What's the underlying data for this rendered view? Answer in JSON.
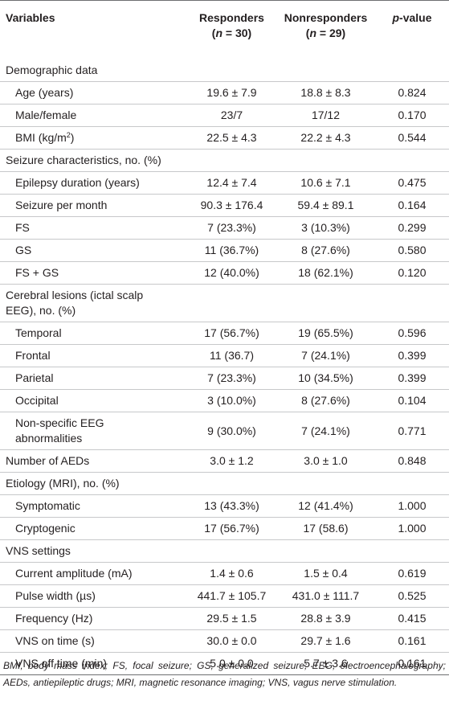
{
  "header": {
    "col1": "Variables",
    "col2_line1": "Responders",
    "col2_n_open": "(",
    "col2_n": "n",
    "col2_n_rest": " = 30)",
    "col3_line1": "Nonresponders",
    "col3_n_open": "(",
    "col3_n": "n",
    "col3_n_rest": " = 29)",
    "col4_p": "p",
    "col4_rest": "-value"
  },
  "rows": [
    {
      "label": "Demographic data",
      "r": "",
      "n": "",
      "p": ""
    },
    {
      "label": "Age (years)",
      "r": "19.6 ± 7.9",
      "n": "18.8 ± 8.3",
      "p": "0.824"
    },
    {
      "label": "Male/female",
      "r": "23/7",
      "n": "17/12",
      "p": "0.170"
    },
    {
      "label": "BMI (kg/m",
      "sup": "2",
      "label_end": ")",
      "r": "22.5 ± 4.3",
      "n": "22.2 ± 4.3",
      "p": "0.544"
    },
    {
      "label": "Seizure characteristics, no. (%)",
      "r": "",
      "n": "",
      "p": ""
    },
    {
      "label": "Epilepsy duration (years)",
      "r": "12.4 ± 7.4",
      "n": "10.6 ± 7.1",
      "p": "0.475"
    },
    {
      "label": "Seizure per month",
      "r": "90.3 ± 176.4",
      "n": "59.4 ± 89.1",
      "p": "0.164"
    },
    {
      "label": "FS",
      "r": "7 (23.3%)",
      "n": "3 (10.3%)",
      "p": "0.299"
    },
    {
      "label": "GS",
      "r": "11 (36.7%)",
      "n": "8 (27.6%)",
      "p": "0.580"
    },
    {
      "label": "FS + GS",
      "r": "12 (40.0%)",
      "n": "18 (62.1%)",
      "p": "0.120"
    },
    {
      "label": "Cerebral lesions (ictal scalp",
      "label2": "EEG), no. (%)",
      "r": "",
      "n": "",
      "p": ""
    },
    {
      "label": "Temporal",
      "r": "17 (56.7%)",
      "n": "19 (65.5%)",
      "p": "0.596"
    },
    {
      "label": "Frontal",
      "r": "11 (36.7)",
      "n": "7 (24.1%)",
      "p": "0.399"
    },
    {
      "label": "Parietal",
      "r": "7 (23.3%)",
      "n": "10 (34.5%)",
      "p": "0.399"
    },
    {
      "label": "Occipital",
      "r": "3 (10.0%)",
      "n": "8 (27.6%)",
      "p": "0.104"
    },
    {
      "label": "Non-specific EEG",
      "label2": "abnormalities",
      "r": "9 (30.0%)",
      "n": "7 (24.1%)",
      "p": "0.771"
    },
    {
      "label": "Number of AEDs",
      "r": "3.0 ± 1.2",
      "n": "3.0 ± 1.0",
      "p": "0.848"
    },
    {
      "label": "Etiology (MRI), no. (%)",
      "r": "",
      "n": "",
      "p": ""
    },
    {
      "label": "Symptomatic",
      "r": "13 (43.3%)",
      "n": "12 (41.4%)",
      "p": "1.000"
    },
    {
      "label": "Cryptogenic",
      "r": "17 (56.7%)",
      "n": "17 (58.6)",
      "p": "1.000"
    },
    {
      "label": "VNS settings",
      "r": "",
      "n": "",
      "p": ""
    },
    {
      "label": "Current amplitude (mA)",
      "r": "1.4 ± 0.6",
      "n": "1.5 ± 0.4",
      "p": "0.619"
    },
    {
      "label": "Pulse width (µs)",
      "r": "441.7 ± 105.7",
      "n": "431.0 ± 111.7",
      "p": "0.525"
    },
    {
      "label": "Frequency (Hz)",
      "r": "29.5 ± 1.5",
      "n": "28.8 ± 3.9",
      "p": "0.415"
    },
    {
      "label": "VNS on time (s)",
      "r": "30.0 ± 0.0",
      "n": "29.7 ± 1.6",
      "p": "0.161"
    },
    {
      "label": "VNS off time (min)",
      "r": "5.0 ± 0.0",
      "n": "5.7 ± 3.6",
      "p": "0.161"
    }
  ],
  "footnote": "BMI, body mass index; FS, focal seizure; GS, generalized seizure; EEG, electroencephalography; AEDs, antiepileptic drugs; MRI, magnetic resonance imaging; VNS, vagus nerve stimulation."
}
